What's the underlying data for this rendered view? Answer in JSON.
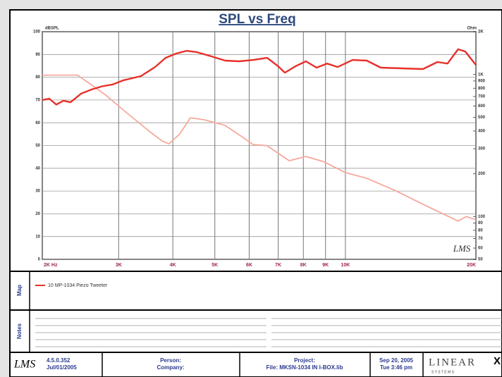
{
  "chart_data": {
    "type": "line",
    "title": "SPL vs Freq",
    "y_label": "dBSPL",
    "y2_label": "Ohm",
    "watermark": "LMS",
    "xscale": "log",
    "y2scale": "log",
    "grid": true,
    "xlim": [
      2000,
      20000
    ],
    "ylim": [
      0,
      100
    ],
    "y2lim": [
      50,
      2000
    ],
    "xticks": [
      {
        "value": 2000,
        "label": "2K  Hz"
      },
      {
        "value": 3000,
        "label": "3K"
      },
      {
        "value": 4000,
        "label": "4K"
      },
      {
        "value": 5000,
        "label": "5K"
      },
      {
        "value": 6000,
        "label": "6K"
      },
      {
        "value": 7000,
        "label": "7K"
      },
      {
        "value": 8000,
        "label": "8K"
      },
      {
        "value": 9000,
        "label": "9K"
      },
      {
        "value": 10000,
        "label": "10K"
      },
      {
        "value": 20000,
        "label": "20K"
      }
    ],
    "yticks": [
      0,
      10,
      20,
      30,
      40,
      50,
      60,
      70,
      80,
      90,
      100
    ],
    "y2ticks": [
      {
        "value": 2000,
        "label": "2K"
      },
      {
        "value": 1000,
        "label": "1K"
      },
      900,
      800,
      700,
      600,
      500,
      400,
      300,
      200,
      100,
      90,
      80,
      70,
      60,
      50
    ],
    "series": [
      {
        "color": "#e8302a",
        "x": [
          2000,
          2075,
          2155,
          2237,
          2323,
          2457,
          2598,
          2747,
          2905,
          3072,
          3377,
          3640,
          3849,
          4070,
          4304,
          4551,
          4902,
          5280,
          5688,
          6126,
          6600,
          6980,
          7250,
          7670,
          8110,
          8580,
          9070,
          9600,
          10390,
          11200,
          12070,
          13500,
          15100,
          16300,
          17200,
          18200,
          18900,
          20000
        ],
        "values": [
          70,
          70.6,
          68,
          69.7,
          69,
          72.8,
          74.6,
          76,
          76.8,
          78.6,
          80.5,
          84.5,
          88.5,
          90.4,
          91.6,
          91,
          89.2,
          87.3,
          87,
          87.6,
          88.5,
          85,
          82,
          84.8,
          87,
          84.2,
          86,
          84.5,
          87.6,
          87.3,
          84.2,
          83.9,
          83.6,
          86.7,
          86,
          92.3,
          91.3,
          85.4
        ]
      },
      {
        "color": "#f6a99c",
        "axis": "y2",
        "x": [
          2000,
          2410,
          2550,
          2800,
          3130,
          3510,
          3780,
          3920,
          4150,
          4390,
          4730,
          5280,
          5800,
          6126,
          6600,
          7420,
          8110,
          8950,
          10000,
          11200,
          13000,
          15100,
          18200,
          19000,
          20000
        ],
        "values": [
          990,
          990,
          879,
          716,
          538,
          404,
          340,
          325,
          382,
          496,
          480,
          438,
          361,
          321,
          315,
          247,
          265,
          242,
          204,
          186,
          153,
          122,
          93,
          100,
          95
        ]
      }
    ]
  },
  "map": {
    "label": "Map",
    "legend": "10  MP-1034 Piezo Tweeter"
  },
  "notes": {
    "label": "Notes"
  },
  "footer": {
    "logo": "LMS",
    "version": "4.5.0.352",
    "version_date": "Jul/01/2005",
    "person": "Person:",
    "company": "Company:",
    "project": "Project:",
    "file": "File: MKSN-1034 IN I-BOX.lib",
    "date": "Sep 20, 2005",
    "time": "Tue 3:46 pm",
    "brand": "LINEAR",
    "brand_mark": "X",
    "brand_sub": "S Y S T E M S"
  }
}
